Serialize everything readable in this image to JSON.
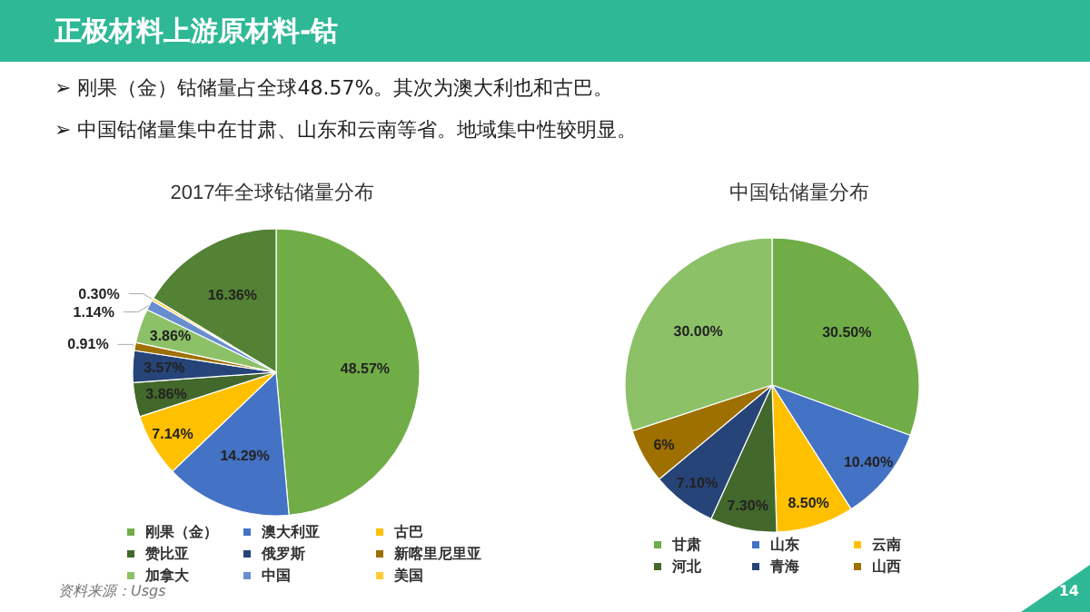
{
  "chart_data": [
    {
      "type": "pie",
      "title": "2017年全球钴储量分布",
      "categories": [
        "刚果（金）",
        "澳大利亚",
        "古巴",
        "赞比亚",
        "俄罗斯",
        "新喀里尼里亚",
        "加拿大",
        "中国",
        "美国",
        null
      ],
      "values": [
        48.57,
        14.29,
        7.14,
        3.86,
        3.57,
        0.91,
        3.86,
        1.14,
        0.3,
        16.36
      ],
      "value_labels": [
        "48.57%",
        "14.29%",
        "7.14%",
        "3.86%",
        "3.57%",
        "0.91%",
        "3.86%",
        "1.14%",
        "0.30%",
        "16.36%"
      ],
      "colors": [
        "#70ad47",
        "#4472c4",
        "#ffc000",
        "#43682b",
        "#264478",
        "#9e7000",
        "#8cc168",
        "#698ed0",
        "#ffcd33",
        "#548235"
      ],
      "legend": "bottom",
      "annotations": [
        "正极材料上游原材料-钴",
        "➢ 刚果（金）钴储量占全球48.57%。其次为澳大利也和古巴。",
        "➢ 中国钴储量集中在甘肃、山东和云南等省。地域集中性较明显。",
        "资料来源：Usgs",
        "14"
      ]
    },
    {
      "type": "pie",
      "title": "中国钴储量分布",
      "categories": [
        "甘肃",
        "山东",
        "云南",
        "河北",
        "青海",
        "山西",
        null
      ],
      "values": [
        30.5,
        10.4,
        8.5,
        7.3,
        7.1,
        6,
        30.0
      ],
      "value_labels": [
        "30.50%",
        "10.40%",
        "8.50%",
        "7.30%",
        "7.10%",
        "6%",
        "30.00%"
      ],
      "colors": [
        "#70ad47",
        "#4472c4",
        "#ffc000",
        "#43682b",
        "#264478",
        "#9e7000",
        "#8cc168"
      ],
      "legend": "bottom"
    }
  ]
}
